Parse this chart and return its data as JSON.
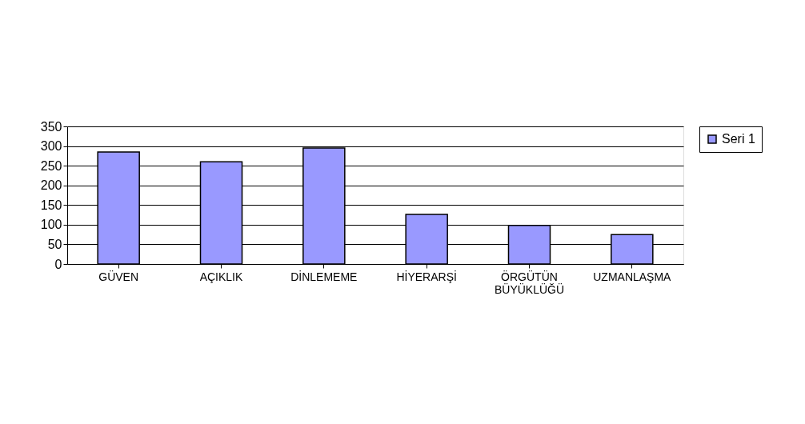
{
  "chart_data": {
    "type": "bar",
    "categories": [
      "GÜVEN",
      "AÇIKLIK",
      "DİNLEMEME",
      "HİYERARŞİ",
      "ÖRGÜTÜN BÜYÜKLÜĞÜ",
      "UZMANLAŞMA"
    ],
    "series": [
      {
        "name": "Seri 1",
        "color": "#9999ff",
        "values": [
          285,
          260,
          295,
          126,
          98,
          75
        ]
      }
    ],
    "ylim": [
      0,
      350
    ],
    "yticks": [
      0,
      50,
      100,
      150,
      200,
      250,
      300,
      350
    ],
    "grid": "y",
    "legend": "right"
  }
}
